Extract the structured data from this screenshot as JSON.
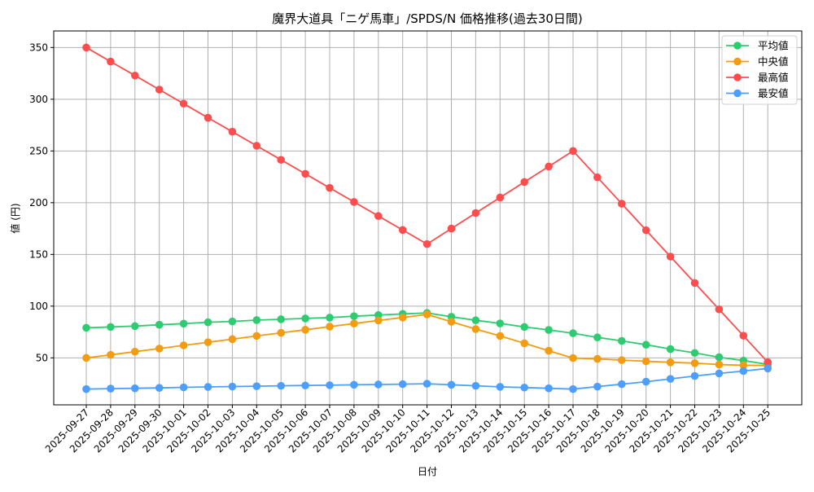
{
  "chart_data": {
    "type": "line",
    "title": "魔界大道具「ニゲ馬車」/SPDS/N 価格推移(過去30日間)",
    "xlabel": "日付",
    "ylabel": "値 (円)",
    "ylim": [
      4.6,
      366
    ],
    "yticks": [
      50,
      100,
      150,
      200,
      250,
      300,
      350
    ],
    "grid": true,
    "legend_position": "upper right",
    "categories": [
      "2025-09-27",
      "2025-09-28",
      "2025-09-29",
      "2025-09-30",
      "2025-10-01",
      "2025-10-02",
      "2025-10-03",
      "2025-10-04",
      "2025-10-05",
      "2025-10-06",
      "2025-10-07",
      "2025-10-08",
      "2025-10-09",
      "2025-10-10",
      "2025-10-11",
      "2025-10-12",
      "2025-10-13",
      "2025-10-14",
      "2025-10-15",
      "2025-10-16",
      "2025-10-17",
      "2025-10-18",
      "2025-10-19",
      "2025-10-20",
      "2025-10-21",
      "2025-10-22",
      "2025-10-23",
      "2025-10-24",
      "2025-10-25"
    ],
    "series": [
      {
        "name": "平均値",
        "color": "#2ecc71",
        "values": [
          79.1,
          79.9,
          80.7,
          82.0,
          83.1,
          84.4,
          85.2,
          86.5,
          87.3,
          88.1,
          88.9,
          90.3,
          91.4,
          92.5,
          93.4,
          89.7,
          86.3,
          83.3,
          79.9,
          77.0,
          73.8,
          69.8,
          66.4,
          62.7,
          58.5,
          54.8,
          50.6,
          47.4,
          43.7
        ]
      },
      {
        "name": "中央値",
        "color": "#f39c12",
        "values": [
          50.0,
          52.9,
          56.0,
          59.0,
          62.1,
          65.1,
          68.1,
          71.2,
          74.2,
          77.2,
          80.2,
          83.2,
          86.2,
          89.0,
          92.0,
          84.9,
          77.8,
          71.2,
          64.1,
          56.9,
          49.8,
          49.0,
          47.8,
          46.7,
          45.7,
          44.9,
          43.6,
          42.9,
          42.6
        ]
      },
      {
        "name": "最高値",
        "color": "#ff4d4d",
        "values": [
          350.0,
          336.4,
          322.9,
          309.3,
          295.7,
          282.1,
          268.6,
          255.0,
          241.4,
          227.9,
          214.3,
          200.7,
          187.1,
          173.6,
          160.0,
          175.0,
          190.0,
          205.0,
          220.0,
          235.0,
          250.0,
          224.5,
          199.0,
          173.4,
          147.9,
          122.4,
          96.9,
          71.4,
          45.8
        ]
      },
      {
        "name": "最安値",
        "color": "#4d9fff",
        "values": [
          19.8,
          20.3,
          20.6,
          21.0,
          21.5,
          21.9,
          22.3,
          22.6,
          23.0,
          23.3,
          23.6,
          24.0,
          24.3,
          24.6,
          25.0,
          24.0,
          23.0,
          22.0,
          21.3,
          20.6,
          19.8,
          22.2,
          24.6,
          27.0,
          29.7,
          32.5,
          35.0,
          37.3,
          39.8
        ]
      }
    ]
  }
}
